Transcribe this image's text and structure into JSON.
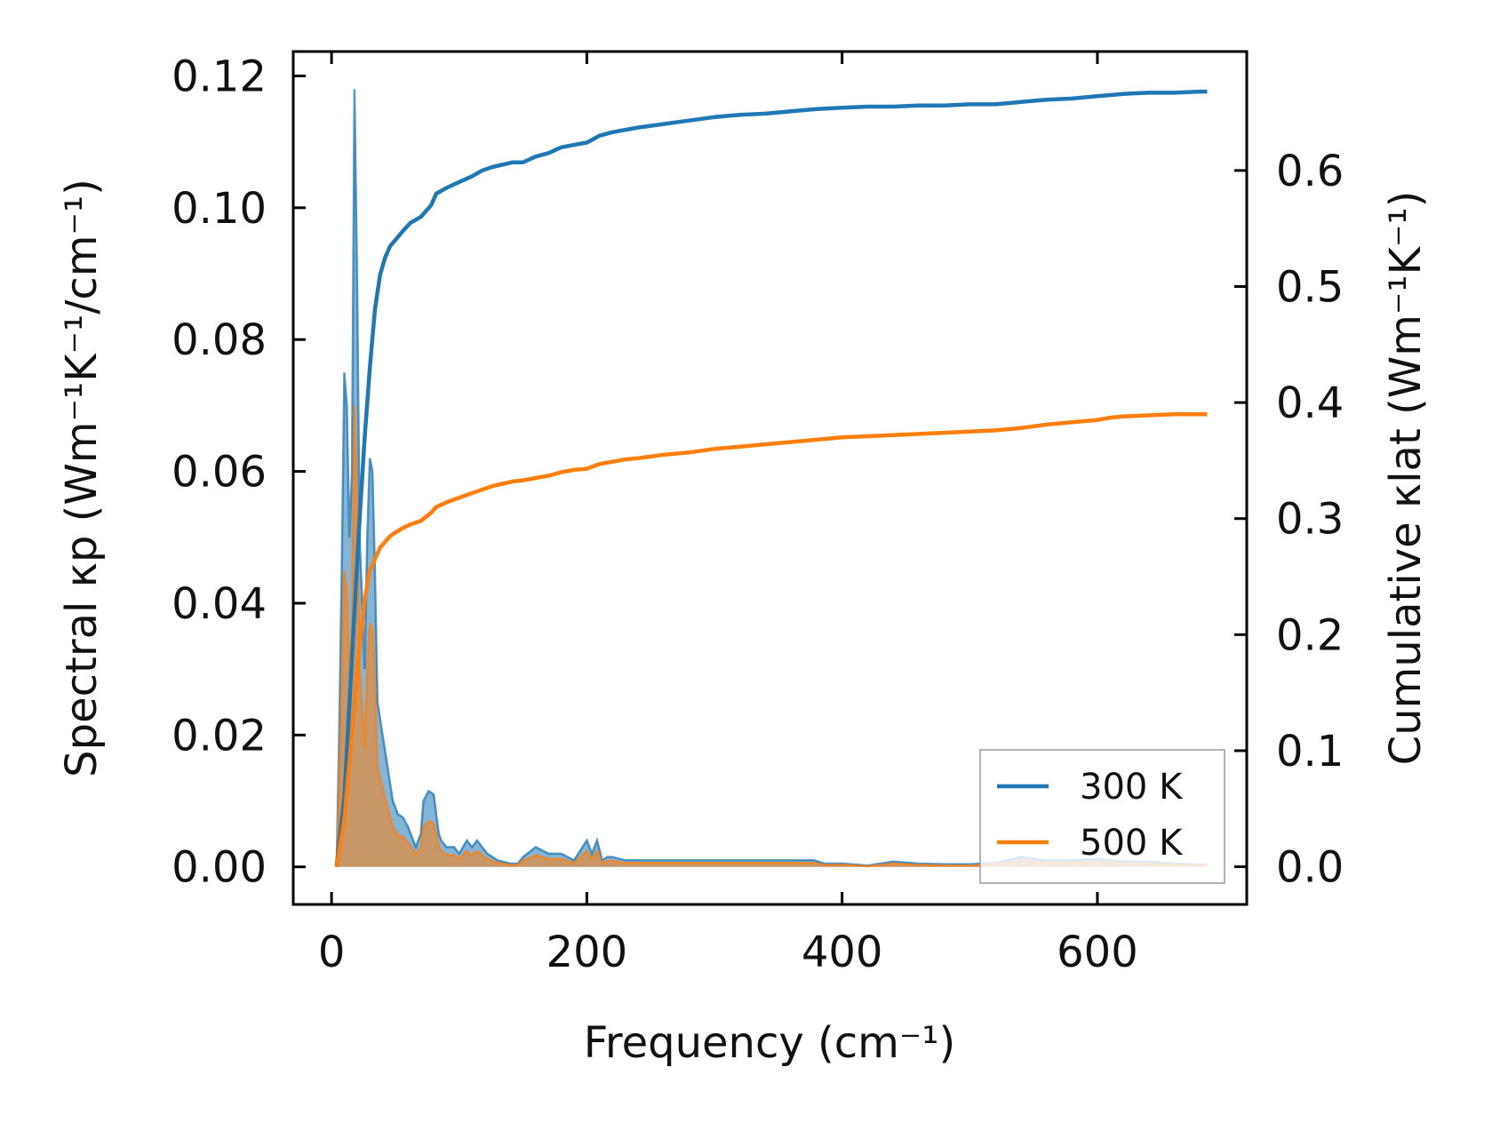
{
  "chart_data": {
    "type": "line",
    "title": "",
    "xlabel": "Frequency (cm⁻¹)",
    "ylabel_left": "Spectral κp (Wm⁻¹K⁻¹/cm⁻¹)",
    "ylabel_right": "Cumulative κlat (Wm⁻¹K⁻¹)",
    "xlim": [
      -30,
      717
    ],
    "ylim_left": [
      -0.0057,
      0.1237
    ],
    "ylim_right": [
      -0.0325,
      0.7025
    ],
    "x_ticks": [
      "0",
      "200",
      "400",
      "600"
    ],
    "x_tick_values": [
      0,
      200,
      400,
      600
    ],
    "y_left_ticks": [
      "0.00",
      "0.02",
      "0.04",
      "0.06",
      "0.08",
      "0.10",
      "0.12"
    ],
    "y_left_tick_values": [
      0,
      0.02,
      0.04,
      0.06,
      0.08,
      0.1,
      0.12
    ],
    "y_right_ticks": [
      "0.0",
      "0.1",
      "0.2",
      "0.3",
      "0.4",
      "0.5",
      "0.6"
    ],
    "y_right_tick_values": [
      0,
      0.1,
      0.2,
      0.3,
      0.4,
      0.5,
      0.6
    ],
    "legend_position": "lower-right",
    "colors": {
      "s300": "#1f77b4",
      "s500": "#ff7f0e"
    },
    "series": [
      {
        "name": "300 K",
        "color": "#1f77b4",
        "axis": "right",
        "kind": "cumulative",
        "x": [
          4,
          10,
          14,
          18,
          22,
          26,
          30,
          34,
          38,
          42,
          46,
          50,
          56,
          62,
          70,
          78,
          82,
          90,
          100,
          110,
          118,
          126,
          134,
          142,
          150,
          160,
          170,
          180,
          190,
          200,
          205,
          210,
          220,
          230,
          240,
          260,
          280,
          300,
          320,
          340,
          360,
          370,
          380,
          400,
          420,
          440,
          460,
          480,
          500,
          520,
          540,
          560,
          580,
          600,
          610,
          620,
          640,
          660,
          680,
          686
        ],
        "values": [
          0.0,
          0.06,
          0.14,
          0.22,
          0.3,
          0.37,
          0.43,
          0.48,
          0.51,
          0.525,
          0.535,
          0.54,
          0.548,
          0.555,
          0.56,
          0.57,
          0.58,
          0.585,
          0.59,
          0.595,
          0.6,
          0.603,
          0.605,
          0.607,
          0.607,
          0.612,
          0.615,
          0.62,
          0.622,
          0.624,
          0.627,
          0.63,
          0.633,
          0.635,
          0.637,
          0.64,
          0.643,
          0.646,
          0.648,
          0.649,
          0.651,
          0.652,
          0.653,
          0.654,
          0.655,
          0.655,
          0.656,
          0.656,
          0.657,
          0.657,
          0.659,
          0.661,
          0.662,
          0.664,
          0.665,
          0.666,
          0.667,
          0.667,
          0.668,
          0.668
        ]
      },
      {
        "name": "500 K",
        "color": "#ff7f0e",
        "axis": "right",
        "kind": "cumulative",
        "x": [
          4,
          10,
          14,
          18,
          22,
          26,
          30,
          34,
          38,
          42,
          46,
          50,
          56,
          62,
          70,
          78,
          82,
          90,
          100,
          110,
          118,
          126,
          134,
          142,
          150,
          160,
          170,
          180,
          190,
          200,
          205,
          210,
          220,
          230,
          240,
          260,
          280,
          300,
          320,
          340,
          360,
          370,
          380,
          400,
          420,
          440,
          460,
          480,
          500,
          520,
          540,
          560,
          580,
          600,
          610,
          620,
          640,
          660,
          680,
          686
        ],
        "values": [
          0.0,
          0.04,
          0.09,
          0.14,
          0.19,
          0.23,
          0.255,
          0.265,
          0.275,
          0.28,
          0.285,
          0.288,
          0.292,
          0.295,
          0.298,
          0.305,
          0.31,
          0.314,
          0.318,
          0.322,
          0.325,
          0.328,
          0.33,
          0.332,
          0.333,
          0.335,
          0.337,
          0.34,
          0.342,
          0.343,
          0.345,
          0.347,
          0.349,
          0.351,
          0.352,
          0.355,
          0.357,
          0.36,
          0.362,
          0.364,
          0.366,
          0.367,
          0.368,
          0.37,
          0.371,
          0.372,
          0.373,
          0.374,
          0.375,
          0.376,
          0.378,
          0.381,
          0.383,
          0.385,
          0.387,
          0.388,
          0.389,
          0.39,
          0.39,
          0.39
        ]
      },
      {
        "name": "300 K spectral",
        "color": "#1f77b4",
        "axis": "left",
        "kind": "spectral",
        "x": [
          4,
          6,
          8,
          10,
          12,
          14,
          16,
          18,
          20,
          22,
          24,
          26,
          28,
          30,
          32,
          34,
          36,
          40,
          44,
          48,
          52,
          56,
          60,
          66,
          70,
          72,
          76,
          80,
          84,
          86,
          90,
          96,
          100,
          106,
          110,
          114,
          118,
          122,
          126,
          130,
          140,
          146,
          150,
          160,
          170,
          180,
          190,
          200,
          204,
          208,
          212,
          216,
          220,
          230,
          240,
          260,
          280,
          300,
          320,
          340,
          360,
          370,
          378,
          386,
          400,
          420,
          440,
          460,
          480,
          500,
          520,
          540,
          560,
          580,
          600,
          620,
          640,
          660,
          686
        ],
        "values": [
          0.0,
          0.02,
          0.045,
          0.075,
          0.07,
          0.05,
          0.06,
          0.118,
          0.09,
          0.05,
          0.04,
          0.03,
          0.05,
          0.062,
          0.06,
          0.045,
          0.025,
          0.02,
          0.015,
          0.01,
          0.008,
          0.0075,
          0.006,
          0.003,
          0.005,
          0.01,
          0.0115,
          0.011,
          0.005,
          0.004,
          0.003,
          0.003,
          0.002,
          0.004,
          0.003,
          0.004,
          0.003,
          0.002,
          0.0015,
          0.001,
          0.0005,
          0.0005,
          0.0015,
          0.003,
          0.002,
          0.002,
          0.001,
          0.004,
          0.002,
          0.004,
          0.001,
          0.0015,
          0.0015,
          0.001,
          0.001,
          0.001,
          0.001,
          0.001,
          0.001,
          0.001,
          0.001,
          0.001,
          0.001,
          0.0005,
          0.0005,
          0.0002,
          0.0008,
          0.0005,
          0.0004,
          0.0004,
          0.0006,
          0.0015,
          0.001,
          0.001,
          0.0012,
          0.0008,
          0.0008,
          0.0005,
          0.0003
        ]
      },
      {
        "name": "500 K spectral",
        "color": "#ff7f0e",
        "axis": "left",
        "kind": "spectral",
        "x": [
          4,
          6,
          8,
          10,
          12,
          14,
          16,
          18,
          20,
          22,
          24,
          26,
          28,
          30,
          32,
          34,
          36,
          40,
          44,
          48,
          52,
          56,
          60,
          66,
          70,
          72,
          76,
          80,
          84,
          86,
          90,
          96,
          100,
          106,
          110,
          114,
          118,
          122,
          126,
          130,
          140,
          146,
          150,
          160,
          170,
          180,
          190,
          200,
          204,
          208,
          212,
          216,
          220,
          230,
          240,
          260,
          280,
          300,
          320,
          340,
          360,
          370,
          378,
          386,
          400,
          420,
          440,
          460,
          480,
          500,
          520,
          540,
          560,
          580,
          600,
          620,
          640,
          660,
          686
        ],
        "values": [
          0.0,
          0.012,
          0.027,
          0.045,
          0.042,
          0.03,
          0.036,
          0.07,
          0.054,
          0.03,
          0.024,
          0.018,
          0.03,
          0.037,
          0.036,
          0.027,
          0.015,
          0.012,
          0.009,
          0.006,
          0.0048,
          0.0045,
          0.0036,
          0.0018,
          0.003,
          0.006,
          0.0069,
          0.0066,
          0.003,
          0.0024,
          0.0018,
          0.0018,
          0.0012,
          0.0024,
          0.0018,
          0.0024,
          0.0018,
          0.0012,
          0.0009,
          0.0006,
          0.0003,
          0.0003,
          0.0009,
          0.0018,
          0.0012,
          0.0012,
          0.0006,
          0.0024,
          0.0012,
          0.0024,
          0.0006,
          0.0009,
          0.0009,
          0.0006,
          0.0006,
          0.0006,
          0.0006,
          0.0006,
          0.0006,
          0.0006,
          0.0006,
          0.0006,
          0.0006,
          0.0003,
          0.0003,
          0.0001,
          0.0005,
          0.0003,
          0.0002,
          0.0002,
          0.0004,
          0.0009,
          0.0006,
          0.0006,
          0.0007,
          0.0005,
          0.0005,
          0.0003,
          0.0002
        ]
      }
    ]
  }
}
